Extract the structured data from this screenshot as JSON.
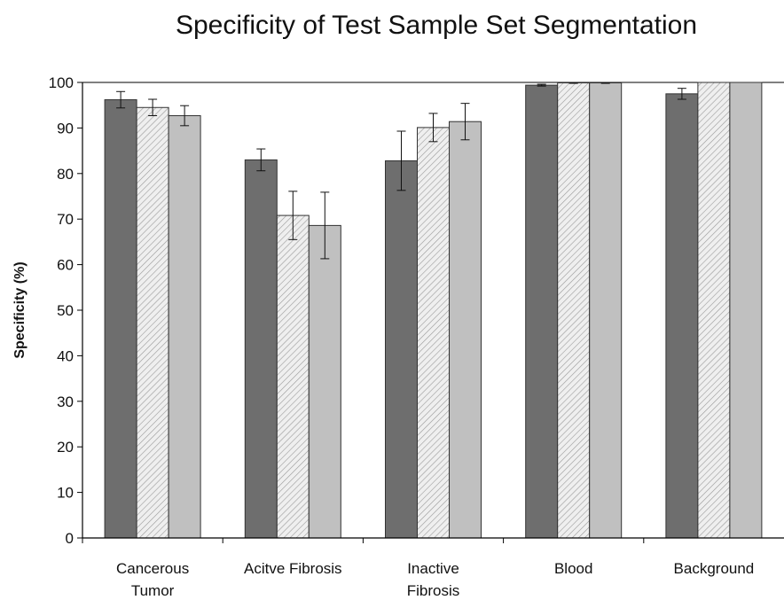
{
  "chart_data": {
    "type": "bar",
    "title": "Specificity of Test Sample Set Segmentation",
    "ylabel": "Specificity (%)",
    "xlabel": "",
    "ylim": [
      0,
      100
    ],
    "yticks": [
      0,
      10,
      20,
      30,
      40,
      50,
      60,
      70,
      80,
      90,
      100
    ],
    "categories": [
      [
        "Cancerous",
        "Tumor"
      ],
      [
        "Acitve Fibrosis"
      ],
      [
        "Inactive",
        "Fibrosis"
      ],
      [
        "Blood"
      ],
      [
        "Background"
      ]
    ],
    "series": [
      {
        "values": [
          96.2,
          83.0,
          82.8,
          99.4,
          97.5
        ],
        "errors": [
          1.8,
          2.4,
          6.5,
          0.2,
          1.2
        ],
        "color": "#6e6e6e",
        "pattern": "solid"
      },
      {
        "values": [
          94.5,
          70.8,
          90.1,
          99.9,
          100.0
        ],
        "errors": [
          1.8,
          5.3,
          3.1,
          0.1,
          0.0
        ],
        "color": "#dcdcdc",
        "pattern": "hatched"
      },
      {
        "values": [
          92.7,
          68.6,
          91.4,
          99.9,
          100.0
        ],
        "errors": [
          2.2,
          7.3,
          4.0,
          0.1,
          0.0
        ],
        "color": "#c0c0c0",
        "pattern": "solid"
      }
    ],
    "grid": false,
    "legend": "none"
  }
}
